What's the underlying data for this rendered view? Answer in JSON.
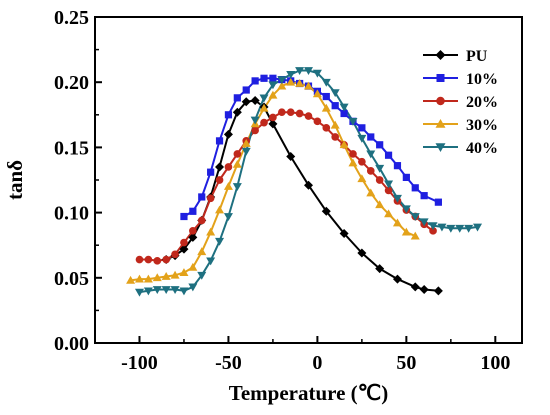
{
  "chart_data": {
    "type": "line",
    "xlabel": "Temperature (℃)",
    "ylabel": "tanδ",
    "xlim": [
      -125,
      115
    ],
    "ylim": [
      0.0,
      0.25
    ],
    "xticks": [
      "-100",
      "-50",
      "0",
      "50",
      "100"
    ],
    "xtick_values": [
      -100,
      -50,
      0,
      50,
      100
    ],
    "yticks": [
      "0.00",
      "0.05",
      "0.10",
      "0.15",
      "0.20",
      "0.25"
    ],
    "ytick_values": [
      0.0,
      0.05,
      0.1,
      0.15,
      0.2,
      0.25
    ],
    "grid": false,
    "legend_position": "top-right",
    "series": [
      {
        "name": "PU",
        "color": "#000000",
        "marker": "diamond",
        "points": [
          [
            -85,
            0.064
          ],
          [
            -80,
            0.067
          ],
          [
            -75,
            0.072
          ],
          [
            -70,
            0.081
          ],
          [
            -65,
            0.094
          ],
          [
            -60,
            0.112
          ],
          [
            -55,
            0.135
          ],
          [
            -50,
            0.16
          ],
          [
            -45,
            0.177
          ],
          [
            -40,
            0.185
          ],
          [
            -35,
            0.186
          ],
          [
            -30,
            0.181
          ],
          [
            -25,
            0.168
          ],
          [
            -15,
            0.143
          ],
          [
            -5,
            0.121
          ],
          [
            5,
            0.101
          ],
          [
            15,
            0.084
          ],
          [
            25,
            0.069
          ],
          [
            35,
            0.057
          ],
          [
            45,
            0.049
          ],
          [
            55,
            0.043
          ],
          [
            60,
            0.041
          ],
          [
            68,
            0.04
          ]
        ]
      },
      {
        "name": "10%",
        "color": "#1f1fe0",
        "marker": "square",
        "points": [
          [
            -75,
            0.097
          ],
          [
            -70,
            0.101
          ],
          [
            -65,
            0.112
          ],
          [
            -60,
            0.131
          ],
          [
            -55,
            0.155
          ],
          [
            -50,
            0.175
          ],
          [
            -45,
            0.188
          ],
          [
            -40,
            0.194
          ],
          [
            -35,
            0.201
          ],
          [
            -30,
            0.203
          ],
          [
            -25,
            0.203
          ],
          [
            -20,
            0.202
          ],
          [
            -15,
            0.201
          ],
          [
            -10,
            0.199
          ],
          [
            -5,
            0.197
          ],
          [
            0,
            0.193
          ],
          [
            5,
            0.189
          ],
          [
            10,
            0.182
          ],
          [
            15,
            0.176
          ],
          [
            20,
            0.17
          ],
          [
            25,
            0.165
          ],
          [
            30,
            0.158
          ],
          [
            35,
            0.152
          ],
          [
            40,
            0.144
          ],
          [
            45,
            0.136
          ],
          [
            50,
            0.127
          ],
          [
            55,
            0.119
          ],
          [
            60,
            0.113
          ],
          [
            68,
            0.108
          ]
        ]
      },
      {
        "name": "20%",
        "color": "#c0281c",
        "marker": "circle",
        "points": [
          [
            -100,
            0.064
          ],
          [
            -95,
            0.064
          ],
          [
            -90,
            0.063
          ],
          [
            -85,
            0.064
          ],
          [
            -80,
            0.068
          ],
          [
            -75,
            0.077
          ],
          [
            -70,
            0.086
          ],
          [
            -65,
            0.094
          ],
          [
            -60,
            0.111
          ],
          [
            -55,
            0.125
          ],
          [
            -50,
            0.135
          ],
          [
            -45,
            0.145
          ],
          [
            -40,
            0.155
          ],
          [
            -35,
            0.163
          ],
          [
            -30,
            0.169
          ],
          [
            -25,
            0.173
          ],
          [
            -20,
            0.177
          ],
          [
            -15,
            0.177
          ],
          [
            -10,
            0.176
          ],
          [
            -5,
            0.174
          ],
          [
            0,
            0.17
          ],
          [
            5,
            0.165
          ],
          [
            10,
            0.158
          ],
          [
            15,
            0.152
          ],
          [
            20,
            0.145
          ],
          [
            25,
            0.139
          ],
          [
            30,
            0.132
          ],
          [
            35,
            0.125
          ],
          [
            40,
            0.117
          ],
          [
            45,
            0.109
          ],
          [
            50,
            0.102
          ],
          [
            55,
            0.097
          ],
          [
            60,
            0.091
          ],
          [
            65,
            0.086
          ]
        ]
      },
      {
        "name": "30%",
        "color": "#e3a21a",
        "marker": "triangle-up",
        "points": [
          [
            -105,
            0.048
          ],
          [
            -100,
            0.049
          ],
          [
            -95,
            0.049
          ],
          [
            -90,
            0.05
          ],
          [
            -85,
            0.051
          ],
          [
            -80,
            0.052
          ],
          [
            -75,
            0.054
          ],
          [
            -70,
            0.058
          ],
          [
            -65,
            0.07
          ],
          [
            -60,
            0.085
          ],
          [
            -55,
            0.102
          ],
          [
            -50,
            0.12
          ],
          [
            -45,
            0.137
          ],
          [
            -40,
            0.153
          ],
          [
            -35,
            0.168
          ],
          [
            -30,
            0.18
          ],
          [
            -25,
            0.19
          ],
          [
            -20,
            0.197
          ],
          [
            -15,
            0.2
          ],
          [
            -10,
            0.199
          ],
          [
            -5,
            0.197
          ],
          [
            0,
            0.191
          ],
          [
            5,
            0.18
          ],
          [
            10,
            0.167
          ],
          [
            15,
            0.152
          ],
          [
            20,
            0.138
          ],
          [
            25,
            0.126
          ],
          [
            30,
            0.115
          ],
          [
            35,
            0.106
          ],
          [
            40,
            0.099
          ],
          [
            45,
            0.092
          ],
          [
            50,
            0.085
          ],
          [
            55,
            0.082
          ]
        ]
      },
      {
        "name": "40%",
        "color": "#1e7080",
        "marker": "triangle-down",
        "points": [
          [
            -100,
            0.039
          ],
          [
            -95,
            0.04
          ],
          [
            -90,
            0.041
          ],
          [
            -85,
            0.041
          ],
          [
            -80,
            0.041
          ],
          [
            -75,
            0.04
          ],
          [
            -70,
            0.043
          ],
          [
            -65,
            0.052
          ],
          [
            -60,
            0.063
          ],
          [
            -55,
            0.078
          ],
          [
            -50,
            0.097
          ],
          [
            -45,
            0.12
          ],
          [
            -40,
            0.147
          ],
          [
            -35,
            0.171
          ],
          [
            -30,
            0.188
          ],
          [
            -25,
            0.198
          ],
          [
            -20,
            0.202
          ],
          [
            -15,
            0.206
          ],
          [
            -10,
            0.209
          ],
          [
            -5,
            0.209
          ],
          [
            0,
            0.207
          ],
          [
            5,
            0.2
          ],
          [
            10,
            0.192
          ],
          [
            15,
            0.181
          ],
          [
            20,
            0.17
          ],
          [
            25,
            0.157
          ],
          [
            30,
            0.145
          ],
          [
            35,
            0.134
          ],
          [
            40,
            0.122
          ],
          [
            45,
            0.111
          ],
          [
            50,
            0.103
          ],
          [
            55,
            0.097
          ],
          [
            60,
            0.093
          ],
          [
            65,
            0.09
          ],
          [
            70,
            0.089
          ],
          [
            75,
            0.088
          ],
          [
            80,
            0.088
          ],
          [
            85,
            0.088
          ],
          [
            90,
            0.089
          ]
        ]
      }
    ]
  }
}
